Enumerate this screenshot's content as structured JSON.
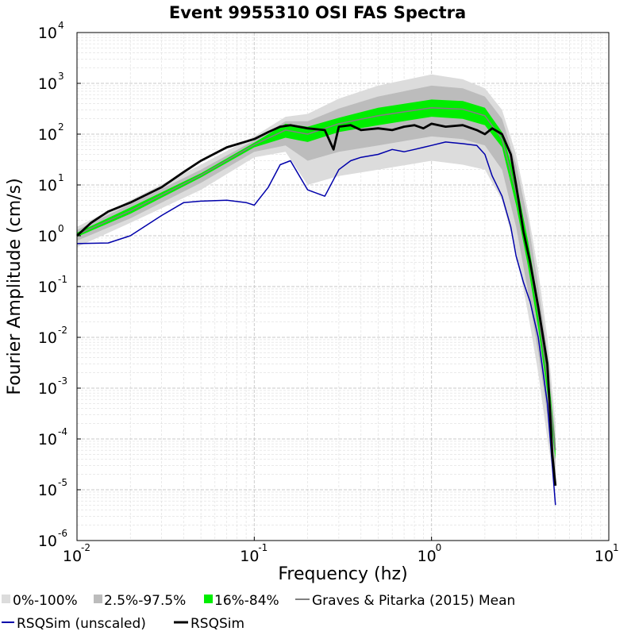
{
  "chart_data": {
    "type": "line",
    "title": "Event 9955310 OSI FAS Spectra",
    "xlabel": "Frequency (hz)",
    "ylabel": "Fourier Amplitude (cm/s)",
    "xscale": "log",
    "yscale": "log",
    "xlim": [
      0.01,
      10
    ],
    "ylim": [
      1e-06,
      10000
    ],
    "x_ticks": [
      {
        "base": "10",
        "exp": "-2",
        "value": 0.01
      },
      {
        "base": "10",
        "exp": "-1",
        "value": 0.1
      },
      {
        "base": "10",
        "exp": "0",
        "value": 1
      },
      {
        "base": "10",
        "exp": "1",
        "value": 10
      }
    ],
    "y_ticks": [
      {
        "base": "10",
        "exp": "-6",
        "value": 1e-06
      },
      {
        "base": "10",
        "exp": "-5",
        "value": 1e-05
      },
      {
        "base": "10",
        "exp": "-4",
        "value": 0.0001
      },
      {
        "base": "10",
        "exp": "-3",
        "value": 0.001
      },
      {
        "base": "10",
        "exp": "-2",
        "value": 0.01
      },
      {
        "base": "10",
        "exp": "-1",
        "value": 0.1
      },
      {
        "base": "10",
        "exp": "0",
        "value": 1
      },
      {
        "base": "10",
        "exp": "1",
        "value": 10
      },
      {
        "base": "10",
        "exp": "2",
        "value": 100
      },
      {
        "base": "10",
        "exp": "3",
        "value": 1000
      },
      {
        "base": "10",
        "exp": "4",
        "value": 10000
      }
    ],
    "grid": true,
    "legend_position": "bottom",
    "bands": [
      {
        "name": "0%-100%",
        "color": "#dcdcdc",
        "x": [
          0.01,
          0.02,
          0.05,
          0.1,
          0.15,
          0.2,
          0.3,
          0.5,
          1,
          1.5,
          2,
          2.5,
          3,
          3.5,
          4,
          4.5,
          5
        ],
        "lower": [
          0.6,
          1.8,
          8,
          35,
          45,
          10,
          15,
          20,
          30,
          25,
          20,
          5,
          0.5,
          0.03,
          0.002,
          0.0001,
          1e-05
        ],
        "upper": [
          1.5,
          5,
          25,
          90,
          220,
          250,
          500,
          900,
          1500,
          1200,
          800,
          300,
          40,
          3,
          0.2,
          0.01,
          0.0002
        ]
      },
      {
        "name": "2.5%-97.5%",
        "color": "#bcbcbc",
        "x": [
          0.01,
          0.02,
          0.05,
          0.1,
          0.15,
          0.2,
          0.3,
          0.5,
          1,
          1.5,
          2,
          2.5,
          3,
          3.5,
          4,
          4.5,
          5
        ],
        "lower": [
          0.8,
          2.2,
          11,
          45,
          60,
          30,
          45,
          60,
          90,
          80,
          60,
          20,
          1.5,
          0.08,
          0.005,
          0.0003,
          2e-05
        ],
        "upper": [
          1.3,
          4.2,
          20,
          75,
          180,
          180,
          320,
          550,
          900,
          800,
          550,
          200,
          25,
          2,
          0.1,
          0.005,
          0.0001
        ]
      },
      {
        "name": "16%-84%",
        "color": "#00ee00",
        "x": [
          0.01,
          0.02,
          0.05,
          0.1,
          0.15,
          0.2,
          0.3,
          0.5,
          1,
          1.5,
          2,
          2.5,
          3,
          3.5,
          4,
          4.5,
          5
        ],
        "lower": [
          0.95,
          2.7,
          14,
          55,
          85,
          70,
          110,
          150,
          220,
          200,
          150,
          55,
          4,
          0.25,
          0.015,
          0.0008,
          4e-05
        ],
        "upper": [
          1.15,
          3.6,
          17,
          68,
          160,
          140,
          210,
          330,
          480,
          450,
          330,
          110,
          12,
          0.8,
          0.05,
          0.003,
          8e-05
        ]
      }
    ],
    "series": [
      {
        "name": "Graves & Pitarka (2015) Mean",
        "color": "#808080",
        "x": [
          0.01,
          0.02,
          0.05,
          0.1,
          0.15,
          0.2,
          0.3,
          0.5,
          1,
          1.5,
          2,
          2.5,
          3,
          3.5,
          4,
          4.5,
          5
        ],
        "y": [
          1.05,
          3.1,
          15.5,
          62,
          120,
          100,
          160,
          230,
          330,
          310,
          230,
          80,
          7,
          0.45,
          0.03,
          0.0015,
          6e-05
        ]
      },
      {
        "name": "RSQSim (unscaled)",
        "color": "#0000aa",
        "x": [
          0.01,
          0.015,
          0.02,
          0.03,
          0.04,
          0.05,
          0.07,
          0.09,
          0.1,
          0.12,
          0.14,
          0.16,
          0.2,
          0.25,
          0.3,
          0.35,
          0.4,
          0.5,
          0.6,
          0.7,
          0.8,
          0.9,
          1,
          1.2,
          1.5,
          1.8,
          2,
          2.2,
          2.5,
          2.8,
          3,
          3.3,
          3.6,
          4,
          4.5,
          4.8,
          5
        ],
        "y": [
          0.7,
          0.72,
          1.0,
          2.5,
          4.5,
          4.8,
          5,
          4.5,
          4,
          9,
          25,
          30,
          8,
          6,
          20,
          30,
          35,
          40,
          50,
          45,
          50,
          55,
          60,
          70,
          65,
          60,
          40,
          15,
          6,
          1.5,
          0.4,
          0.12,
          0.05,
          0.01,
          0.0005,
          3e-05,
          5e-06
        ]
      },
      {
        "name": "RSQSim",
        "color": "#000000",
        "x": [
          0.01,
          0.012,
          0.015,
          0.02,
          0.03,
          0.04,
          0.05,
          0.07,
          0.1,
          0.12,
          0.14,
          0.16,
          0.2,
          0.25,
          0.28,
          0.3,
          0.35,
          0.4,
          0.5,
          0.6,
          0.7,
          0.8,
          0.9,
          1,
          1.2,
          1.5,
          1.8,
          2,
          2.2,
          2.5,
          2.8,
          3,
          3.3,
          3.6,
          4,
          4.5,
          4.8,
          5
        ],
        "y": [
          1,
          1.8,
          3,
          4.5,
          9,
          18,
          30,
          55,
          80,
          110,
          140,
          150,
          130,
          120,
          50,
          140,
          150,
          120,
          130,
          120,
          140,
          150,
          130,
          160,
          140,
          150,
          120,
          100,
          130,
          100,
          40,
          10,
          1.2,
          0.3,
          0.04,
          0.003,
          5e-05,
          1.2e-05
        ]
      }
    ]
  }
}
